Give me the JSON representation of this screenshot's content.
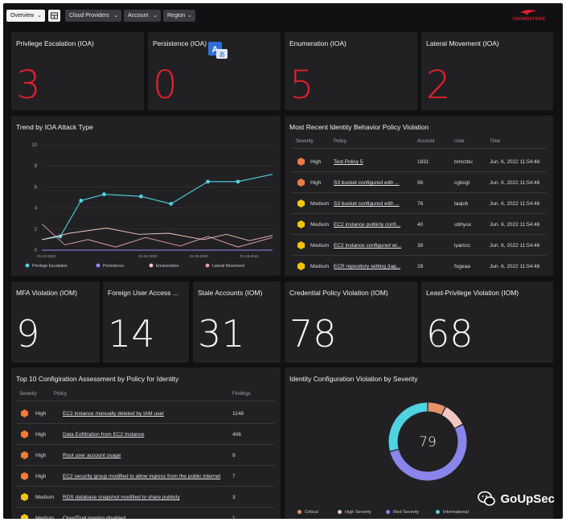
{
  "toolbar": {
    "overview_label": "Overview",
    "cloud_providers_label": "Cloud Providers",
    "account_label": "Account",
    "region_label": "Region",
    "brand_text": "CROWDSTRIKE"
  },
  "ioa_cards": [
    {
      "title": "Privilege Escalation (IOA)",
      "value": "3"
    },
    {
      "title": "Persistence (IOA)",
      "value": "0"
    },
    {
      "title": "Enumeration (IOA)",
      "value": "5"
    },
    {
      "title": "Lateral Movement (IOA)",
      "value": "2"
    }
  ],
  "trend_panel": {
    "title": "Trend by IOA Attack Type"
  },
  "chart_data": {
    "type": "line",
    "title": "Trend by IOA Attack Type",
    "x": [
      "01-24-2022",
      "",
      "01-02-2022",
      "01-02-2022",
      "01-18-2022"
    ],
    "yticks": [
      0,
      2,
      4,
      6,
      8,
      10
    ],
    "ylim": [
      0,
      10
    ],
    "legend_position": "bottom",
    "series": [
      {
        "name": "Privilege Escalation",
        "color": "#4fd3e0",
        "points": [
          [
            0,
            1.0
          ],
          [
            0.08,
            1.3
          ],
          [
            0.17,
            4.7
          ],
          [
            0.27,
            5.3
          ],
          [
            0.43,
            5.1
          ],
          [
            0.56,
            4.4
          ],
          [
            0.72,
            6.5
          ],
          [
            0.85,
            6.5
          ],
          [
            1.0,
            7.2
          ]
        ]
      },
      {
        "name": "Persistence",
        "color": "#9b86f0",
        "points": [
          [
            0,
            0.0
          ],
          [
            0.2,
            0.0
          ],
          [
            0.4,
            0.0
          ],
          [
            0.6,
            0.0
          ],
          [
            0.8,
            0.0
          ],
          [
            1.0,
            0.0
          ]
        ]
      },
      {
        "name": "Enumeration",
        "color": "#f2c6c2",
        "points": [
          [
            0,
            1.0
          ],
          [
            0.12,
            1.6
          ],
          [
            0.28,
            2.1
          ],
          [
            0.42,
            1.5
          ],
          [
            0.55,
            1.6
          ],
          [
            0.7,
            1.0
          ],
          [
            0.8,
            1.5
          ],
          [
            0.9,
            0.9
          ],
          [
            1.0,
            1.4
          ]
        ]
      },
      {
        "name": "Lateral Movement",
        "color": "#e9a0b0",
        "points": [
          [
            0,
            2.5
          ],
          [
            0.1,
            0.5
          ],
          [
            0.2,
            1.0
          ],
          [
            0.32,
            0.3
          ],
          [
            0.45,
            1.2
          ],
          [
            0.6,
            0.4
          ],
          [
            0.72,
            1.3
          ],
          [
            0.85,
            0.3
          ],
          [
            1.0,
            1.2
          ]
        ]
      }
    ]
  },
  "violation_panel": {
    "title": "Most Recent Identity Behavior Policy Violation",
    "headers": [
      "Severity",
      "Policy",
      "Account",
      "User",
      "Time"
    ],
    "rows": [
      {
        "severity": "High",
        "policy": "Test Policy 5",
        "account": "1831",
        "user": "bmvzbu",
        "time": "Jun. 6, 2022 11:54:46"
      },
      {
        "severity": "High",
        "policy": "S3 bucket configured with ...",
        "account": "96",
        "user": "cgbxgt",
        "time": "Jun. 6, 2022 11:54:46"
      },
      {
        "severity": "Medium",
        "policy": "S3 bucket configured with ...",
        "account": "76",
        "user": "taajvb",
        "time": "Jun. 6, 2022 11:54:46"
      },
      {
        "severity": "Medium",
        "policy": "EC2 instance publicly confi...",
        "account": "40",
        "user": "ubhyux",
        "time": "Jun. 6, 2022 11:54:46"
      },
      {
        "severity": "Medium",
        "policy": "EC2 instance configured wi...",
        "account": "38",
        "user": "lyamcc",
        "time": "Jun. 6, 2022 11:54:46"
      },
      {
        "severity": "Medium",
        "policy": "ECR repository setting (lag...",
        "account": "28",
        "user": "fogeaa",
        "time": "Jun. 6, 2022 11:54:46"
      }
    ]
  },
  "iom_cards": [
    {
      "title": "MFA Violation (IOM)",
      "value": "9"
    },
    {
      "title": "Foreign User Access ...",
      "value": "14"
    },
    {
      "title": "Stale Accounts (IOM)",
      "value": "31"
    },
    {
      "title": "Credential Policy Violation (IOM)",
      "value": "78"
    },
    {
      "title": "Least-Privilege Violation (IOM)",
      "value": "68"
    }
  ],
  "config_panel": {
    "title": "Top 10 Configiration Assessment by Policy for Identity",
    "headers": [
      "Severity",
      "Policy",
      "Findings"
    ],
    "rows": [
      {
        "severity": "High",
        "policy": "EC2 instance manually deleted by IAM user",
        "findings": "1148"
      },
      {
        "severity": "High",
        "policy": "Data Exfiltration from EC2 Instance",
        "findings": "406"
      },
      {
        "severity": "High",
        "policy": "Root user account usage",
        "findings": "9"
      },
      {
        "severity": "High",
        "policy": "EC2 security group modified to allow ingress from the public internet",
        "findings": "7"
      },
      {
        "severity": "Medium",
        "policy": "RDS database snapshot modified to share publicly",
        "findings": "3"
      },
      {
        "severity": "Medium",
        "policy": "CloudTrail logging disabled",
        "findings": "1"
      }
    ]
  },
  "donut_panel": {
    "title": "Identity Configuration Violation by Severity",
    "center_value": "79",
    "segments": [
      {
        "name": "Critical",
        "value": 6,
        "color": "#e8926a"
      },
      {
        "name": "High Severity",
        "value": 8,
        "color": "#f2c6c2"
      },
      {
        "name": "Med Severity",
        "value": 42,
        "color": "#8a85ea"
      },
      {
        "name": "Informational",
        "value": 23,
        "color": "#4fd3e0"
      }
    ]
  },
  "colors": {
    "high": "#f07a3a",
    "medium": "#f5c400",
    "accent_red": "#e0202e"
  },
  "watermark": {
    "text": "GoUpSec"
  }
}
